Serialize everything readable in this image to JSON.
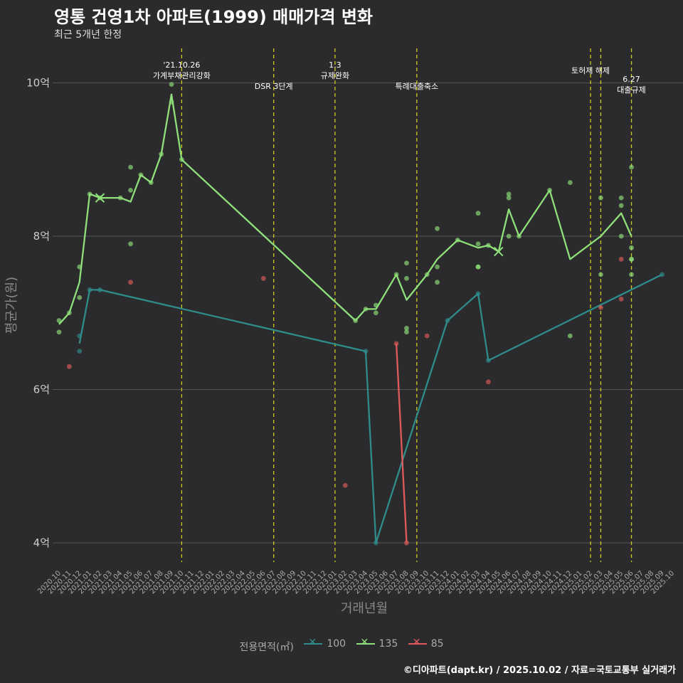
{
  "chart_data": {
    "type": "line",
    "title": "영통 건영1차 아파트(1999) 매매가격 변화",
    "subtitle": "최근 5개년 한정",
    "xlabel": "거래년월",
    "ylabel": "평균가(원)",
    "caption": "©디아파트(dapt.kr) / 2025.10.02 / 자료=국토교통부 실거래가",
    "legend_title": "전용면적(㎡)",
    "y_ticks": [
      {
        "value": 4,
        "label": "4억"
      },
      {
        "value": 6,
        "label": "6억"
      },
      {
        "value": 8,
        "label": "8억"
      },
      {
        "value": 10,
        "label": "10억"
      }
    ],
    "ylim": [
      3.75,
      10.45
    ],
    "x_start": "2020.10",
    "x_end": "2025.10",
    "categories": [
      "2020.10",
      "2020.11",
      "2020.12",
      "2021.01",
      "2021.02",
      "2021.03",
      "2021.04",
      "2021.05",
      "2021.06",
      "2021.07",
      "2021.08",
      "2021.09",
      "2021.10",
      "2021.11",
      "2021.12",
      "2022.01",
      "2022.02",
      "2022.03",
      "2022.04",
      "2022.05",
      "2022.06",
      "2022.07",
      "2022.08",
      "2022.09",
      "2022.10",
      "2022.11",
      "2022.12",
      "2023.01",
      "2023.02",
      "2023.03",
      "2023.04",
      "2023.05",
      "2023.06",
      "2023.07",
      "2023.08",
      "2023.09",
      "2023.10",
      "2023.11",
      "2023.12",
      "2024.01",
      "2024.02",
      "2024.03",
      "2024.04",
      "2024.05",
      "2024.06",
      "2024.07",
      "2024.08",
      "2024.09",
      "2024.10",
      "2024.11",
      "2024.12",
      "2025.01",
      "2025.02",
      "2025.03",
      "2025.04",
      "2025.05",
      "2025.06",
      "2025.07",
      "2025.08",
      "2025.09",
      "2025.10"
    ],
    "annotations": [
      {
        "x": "2021.10",
        "lines": [
          "'21.10.26",
          "가계부채관리강화"
        ],
        "level": "high"
      },
      {
        "x": "2022.07",
        "lines": [
          "DSR 3단계"
        ],
        "level": "low"
      },
      {
        "x": "2023.01",
        "lines": [
          "1.3",
          "규제완화"
        ],
        "level": "high"
      },
      {
        "x": "2023.09",
        "lines": [
          "특례대출축소"
        ],
        "level": "low"
      },
      {
        "x": "2025.02",
        "lines": [
          "토허제 해제"
        ],
        "level": "mid"
      },
      {
        "x": "2025.03",
        "lines": [],
        "level": "none"
      },
      {
        "x": "2025.06",
        "lines": [
          "6.27",
          "대출규제"
        ],
        "level": "low2"
      }
    ],
    "series": [
      {
        "name": "100",
        "color": "#2e8c8a",
        "line": [
          [
            "2020.12",
            6.6
          ],
          [
            "2021.01",
            7.3
          ],
          [
            "2021.02",
            7.3
          ],
          [
            "2023.04",
            6.5
          ],
          [
            "2023.05",
            4.0
          ],
          [
            "2023.12",
            6.9
          ],
          [
            "2024.03",
            7.25
          ],
          [
            "2024.04",
            6.38
          ],
          [
            "2025.09",
            7.5
          ]
        ],
        "points": [
          [
            "2020.12",
            6.5
          ],
          [
            "2020.12",
            6.7
          ],
          [
            "2021.01",
            7.3
          ],
          [
            "2021.02",
            7.3
          ],
          [
            "2023.04",
            6.5
          ],
          [
            "2023.05",
            4.0
          ],
          [
            "2023.12",
            6.9
          ],
          [
            "2024.03",
            7.25
          ],
          [
            "2024.04",
            6.38
          ],
          [
            "2025.09",
            7.5
          ]
        ]
      },
      {
        "name": "135",
        "color": "#8fe07a",
        "line": [
          [
            "2020.10",
            6.85
          ],
          [
            "2020.11",
            7.0
          ],
          [
            "2020.12",
            7.4
          ],
          [
            "2021.01",
            8.55
          ],
          [
            "2021.02",
            8.5
          ],
          [
            "2021.04",
            8.5
          ],
          [
            "2021.05",
            8.45
          ],
          [
            "2021.06",
            8.8
          ],
          [
            "2021.07",
            8.7
          ],
          [
            "2021.08",
            9.07
          ],
          [
            "2021.09",
            9.85
          ],
          [
            "2021.10",
            9.0
          ],
          [
            "2023.03",
            6.9
          ],
          [
            "2023.04",
            7.05
          ],
          [
            "2023.05",
            7.05
          ],
          [
            "2023.07",
            7.5
          ],
          [
            "2023.08",
            7.17
          ],
          [
            "2023.10",
            7.5
          ],
          [
            "2023.11",
            7.7
          ],
          [
            "2024.01",
            7.95
          ],
          [
            "2024.03",
            7.85
          ],
          [
            "2024.04",
            7.88
          ],
          [
            "2024.05",
            7.8
          ],
          [
            "2024.06",
            8.35
          ],
          [
            "2024.07",
            8.0
          ],
          [
            "2024.10",
            8.6
          ],
          [
            "2024.12",
            7.7
          ],
          [
            "2025.03",
            8.0
          ],
          [
            "2025.05",
            8.3
          ],
          [
            "2025.06",
            8.0
          ]
        ],
        "points": [
          [
            "2020.10",
            6.9
          ],
          [
            "2020.10",
            6.75
          ],
          [
            "2020.11",
            7.0
          ],
          [
            "2020.12",
            7.6
          ],
          [
            "2020.12",
            7.2
          ],
          [
            "2021.01",
            8.55
          ],
          [
            "2021.02",
            8.5
          ],
          [
            "2021.04",
            8.5
          ],
          [
            "2021.05",
            8.9
          ],
          [
            "2021.05",
            8.6
          ],
          [
            "2021.05",
            7.9
          ],
          [
            "2021.06",
            8.8
          ],
          [
            "2021.07",
            8.7
          ],
          [
            "2021.08",
            9.07
          ],
          [
            "2021.09",
            9.98
          ],
          [
            "2021.09",
            9.75
          ],
          [
            "2021.10",
            9.0
          ],
          [
            "2023.03",
            6.9
          ],
          [
            "2023.04",
            7.05
          ],
          [
            "2023.05",
            7.1
          ],
          [
            "2023.05",
            7.0
          ],
          [
            "2023.07",
            7.5
          ],
          [
            "2023.08",
            7.65
          ],
          [
            "2023.08",
            7.45
          ],
          [
            "2023.08",
            6.8
          ],
          [
            "2023.08",
            6.75
          ],
          [
            "2023.10",
            7.5
          ],
          [
            "2023.11",
            8.1
          ],
          [
            "2023.11",
            7.6
          ],
          [
            "2023.11",
            7.4
          ],
          [
            "2024.01",
            7.95
          ],
          [
            "2024.03",
            8.3
          ],
          [
            "2024.03",
            7.9
          ],
          [
            "2024.03",
            7.6
          ],
          [
            "2024.03",
            7.6
          ],
          [
            "2024.04",
            7.88
          ],
          [
            "2024.06",
            8.55
          ],
          [
            "2024.06",
            8.5
          ],
          [
            "2024.06",
            8.0
          ],
          [
            "2024.07",
            8.0
          ],
          [
            "2024.10",
            8.6
          ],
          [
            "2024.12",
            8.7
          ],
          [
            "2024.12",
            6.7
          ],
          [
            "2025.03",
            8.5
          ],
          [
            "2025.03",
            7.5
          ],
          [
            "2025.05",
            8.5
          ],
          [
            "2025.05",
            8.4
          ],
          [
            "2025.05",
            8.0
          ],
          [
            "2025.06",
            8.9
          ],
          [
            "2025.06",
            7.85
          ],
          [
            "2025.06",
            7.7
          ],
          [
            "2025.06",
            7.7
          ],
          [
            "2025.06",
            7.5
          ]
        ]
      },
      {
        "name": "85",
        "color": "#e05a5a",
        "line": [
          [
            "2023.07",
            6.6
          ],
          [
            "2023.08",
            4.0
          ]
        ],
        "points": [
          [
            "2020.11",
            6.3
          ],
          [
            "2021.05",
            7.4
          ],
          [
            "2022.06",
            7.45
          ],
          [
            "2023.02",
            4.75
          ],
          [
            "2023.07",
            6.6
          ],
          [
            "2023.08",
            4.0
          ],
          [
            "2023.10",
            6.7
          ],
          [
            "2024.04",
            6.1
          ],
          [
            "2025.03",
            7.07
          ],
          [
            "2025.05",
            7.7
          ],
          [
            "2025.05",
            7.18
          ]
        ]
      }
    ],
    "cross_markers": [
      {
        "series": "135",
        "x": "2021.02",
        "y": 8.5
      },
      {
        "series": "135",
        "x": "2024.05",
        "y": 7.8
      }
    ]
  }
}
